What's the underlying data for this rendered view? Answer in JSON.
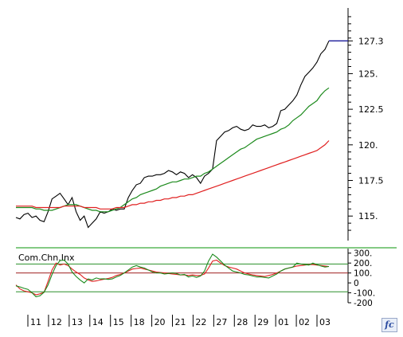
{
  "colors": {
    "price": "#000000",
    "fast_ma": "#1c8a1c",
    "slow_ma": "#e02020",
    "last_price_line": "#1a1a99",
    "indicator_main": "#e02020",
    "indicator_signal": "#1c8a1c",
    "indicator_upper_ref": "#2a8f2a",
    "indicator_zero_ref": "#a02020",
    "indicator_lower_ref": "#2a8f2a",
    "separator": "#3aaa3a"
  },
  "chart_data": {
    "type": "line",
    "title": "",
    "price_panel": {
      "ylim": [
        113.5,
        129.5
      ],
      "y_ticks": [
        "115.",
        "117.5",
        "120.",
        "122.5",
        "125.",
        "127.3"
      ],
      "y_tick_values": [
        115,
        117.5,
        120,
        122.5,
        125,
        127.3
      ],
      "last_price": 127.3,
      "bar_count": 79,
      "series": [
        {
          "values": [
            114.9,
            114.8,
            115.1,
            115.2,
            114.9,
            115.0,
            114.7,
            114.6,
            115.3,
            116.2,
            116.4,
            116.6,
            116.2,
            115.8,
            116.3,
            115.3,
            114.7,
            115.0,
            114.2,
            114.5,
            114.8,
            115.3,
            115.2,
            115.3,
            115.5,
            115.4,
            115.5,
            115.5,
            116.3,
            116.8,
            117.2,
            117.3,
            117.7,
            117.8,
            117.8,
            117.9,
            117.9,
            118.0,
            118.2,
            118.1,
            117.9,
            118.1,
            118.0,
            117.7,
            117.9,
            117.7,
            117.3,
            117.8,
            118.0,
            118.3,
            120.3,
            120.6,
            120.9,
            121.0,
            121.2,
            121.3,
            121.1,
            121.0,
            121.1,
            121.4,
            121.3,
            121.3,
            121.4,
            121.2,
            121.3,
            121.5,
            122.4,
            122.5,
            122.8,
            123.1,
            123.5,
            124.2,
            124.8,
            125.1,
            125.4,
            125.8,
            126.4,
            126.7,
            127.3
          ]
        },
        {
          "values": [
            115.6,
            115.6,
            115.6,
            115.6,
            115.6,
            115.5,
            115.5,
            115.4,
            115.4,
            115.4,
            115.5,
            115.6,
            115.7,
            115.8,
            115.8,
            115.8,
            115.7,
            115.6,
            115.5,
            115.4,
            115.4,
            115.3,
            115.3,
            115.3,
            115.4,
            115.5,
            115.6,
            115.8,
            116.0,
            116.2,
            116.3,
            116.5,
            116.6,
            116.7,
            116.8,
            116.9,
            117.1,
            117.2,
            117.3,
            117.4,
            117.4,
            117.5,
            117.6,
            117.6,
            117.7,
            117.8,
            117.8,
            118.0,
            118.1,
            118.3,
            118.5,
            118.7,
            118.9,
            119.1,
            119.3,
            119.5,
            119.7,
            119.8,
            120.0,
            120.2,
            120.4,
            120.5,
            120.6,
            120.7,
            120.8,
            120.9,
            121.1,
            121.2,
            121.4,
            121.7,
            121.9,
            122.1,
            122.4,
            122.7,
            122.9,
            123.1,
            123.5,
            123.8,
            124.0
          ]
        },
        {
          "values": [
            115.7,
            115.7,
            115.7,
            115.7,
            115.7,
            115.6,
            115.6,
            115.6,
            115.6,
            115.6,
            115.6,
            115.6,
            115.7,
            115.7,
            115.7,
            115.7,
            115.7,
            115.6,
            115.6,
            115.6,
            115.6,
            115.5,
            115.5,
            115.5,
            115.5,
            115.6,
            115.6,
            115.6,
            115.7,
            115.8,
            115.8,
            115.9,
            115.9,
            116.0,
            116.0,
            116.1,
            116.1,
            116.2,
            116.2,
            116.3,
            116.3,
            116.4,
            116.4,
            116.5,
            116.5,
            116.6,
            116.7,
            116.8,
            116.9,
            117.0,
            117.1,
            117.2,
            117.3,
            117.4,
            117.5,
            117.6,
            117.7,
            117.8,
            117.9,
            118.0,
            118.1,
            118.2,
            118.3,
            118.4,
            118.5,
            118.6,
            118.7,
            118.8,
            118.9,
            119.0,
            119.1,
            119.2,
            119.3,
            119.4,
            119.5,
            119.6,
            119.8,
            120.0,
            120.3
          ]
        }
      ]
    },
    "indicator_panel": {
      "title": "Com.Chn.Inx",
      "ylim": [
        -200,
        330
      ],
      "y_ticks": [
        "300.",
        "200.",
        "100.",
        "0",
        "-100.",
        "-200"
      ],
      "y_tick_values": [
        300,
        200,
        100,
        0,
        -100,
        -200
      ],
      "reference_lines": [
        190,
        100,
        -90
      ],
      "series": [
        {
          "values": [
            -20,
            -60,
            -80,
            -90,
            -100,
            -120,
            -110,
            -95,
            15,
            130,
            200,
            180,
            190,
            175,
            140,
            110,
            85,
            50,
            30,
            15,
            20,
            30,
            38,
            45,
            55,
            75,
            85,
            100,
            120,
            140,
            145,
            150,
            140,
            130,
            120,
            110,
            105,
            100,
            95,
            90,
            85,
            80,
            80,
            75,
            80,
            75,
            75,
            90,
            150,
            220,
            230,
            200,
            175,
            160,
            150,
            140,
            120,
            100,
            90,
            80,
            75,
            70,
            65,
            75,
            85,
            100,
            120,
            140,
            150,
            160,
            170,
            175,
            180,
            185,
            185,
            180,
            175,
            170,
            165
          ]
        },
        {
          "values": [
            -30,
            -40,
            -55,
            -65,
            -100,
            -140,
            -130,
            -95,
            -20,
            85,
            175,
            225,
            230,
            190,
            110,
            65,
            30,
            0,
            40,
            30,
            50,
            40,
            42,
            35,
            40,
            60,
            75,
            100,
            130,
            160,
            175,
            160,
            150,
            130,
            110,
            100,
            100,
            90,
            95,
            100,
            95,
            80,
            85,
            60,
            70,
            55,
            70,
            120,
            220,
            290,
            260,
            220,
            180,
            150,
            120,
            110,
            100,
            85,
            80,
            70,
            60,
            60,
            55,
            50,
            70,
            90,
            120,
            140,
            150,
            160,
            200,
            190,
            185,
            180,
            200,
            185,
            170,
            160,
            165
          ]
        }
      ]
    },
    "x_ticks": [
      "11",
      "12",
      "13",
      "14",
      "15",
      "18",
      "20",
      "21",
      "22",
      "27",
      "28",
      "29",
      "01",
      "02",
      "03"
    ]
  },
  "logo_glyph": "fc"
}
